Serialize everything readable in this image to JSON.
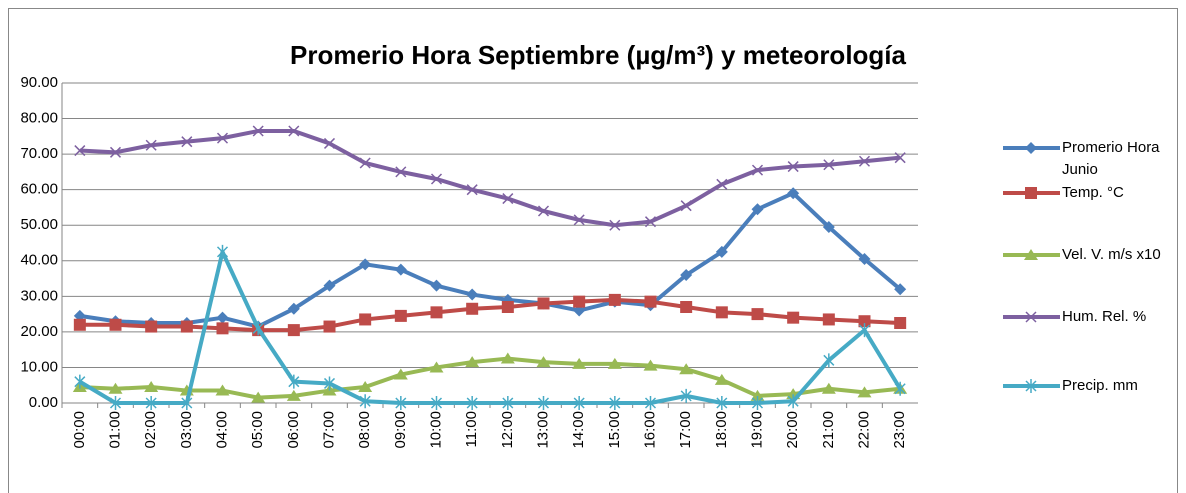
{
  "chart_data": {
    "type": "line",
    "title": "Promerio Hora Septiembre (µg/m³) y meteorología",
    "categories": [
      "00:00",
      "01:00",
      "02:00",
      "03:00",
      "04:00",
      "05:00",
      "06:00",
      "07:00",
      "08:00",
      "09:00",
      "10:00",
      "11:00",
      "12:00",
      "13:00",
      "14:00",
      "15:00",
      "16:00",
      "17:00",
      "18:00",
      "19:00",
      "20:00",
      "21:00",
      "22:00",
      "23:00"
    ],
    "series": [
      {
        "name": "Promerio Hora Junio",
        "color": "#4a7ebb",
        "marker": "diamond",
        "values": [
          24.5,
          23,
          22.5,
          22.5,
          24,
          21.5,
          26.5,
          33,
          39,
          37.5,
          33,
          30.5,
          29,
          28,
          26,
          28.5,
          27.5,
          36,
          42.5,
          54.5,
          59,
          49.5,
          40.5,
          32
        ]
      },
      {
        "name": "Temp. °C",
        "color": "#be4b48",
        "marker": "square",
        "values": [
          22,
          22,
          21.5,
          21.5,
          21,
          20.5,
          20.5,
          21.5,
          23.5,
          24.5,
          25.5,
          26.5,
          27,
          28,
          28.5,
          29,
          28.5,
          27,
          25.5,
          25,
          24,
          23.5,
          23,
          22.5
        ]
      },
      {
        "name": "Vel. V. m/s x10",
        "color": "#98b954",
        "marker": "triangle",
        "values": [
          4.5,
          4,
          4.5,
          3.5,
          3.5,
          1.5,
          2,
          3.5,
          4.5,
          8,
          10,
          11.5,
          12.5,
          11.5,
          11,
          11,
          10.5,
          9.5,
          6.5,
          2,
          2.5,
          4,
          3,
          4
        ]
      },
      {
        "name": "Hum. Rel. %",
        "color": "#7d60a0",
        "marker": "x",
        "values": [
          71,
          70.5,
          72.5,
          73.5,
          74.5,
          76.5,
          76.5,
          73,
          67.5,
          65,
          63,
          60,
          57.5,
          54,
          51.5,
          50,
          51,
          55.5,
          61.5,
          65.5,
          66.5,
          67,
          68,
          69
        ]
      },
      {
        "name": "Precip. mm",
        "color": "#46aac5",
        "marker": "star",
        "values": [
          6,
          0,
          0,
          0,
          42.5,
          21,
          6,
          5.5,
          0.5,
          0,
          0,
          0,
          0,
          0,
          0,
          0,
          0,
          2,
          0,
          0,
          0.5,
          12,
          20.5,
          4
        ]
      }
    ],
    "ylim": [
      0,
      90
    ],
    "yticks": [
      {
        "value": 0,
        "label": "0.00"
      },
      {
        "value": 10,
        "label": "10.00"
      },
      {
        "value": 20,
        "label": "20.00"
      },
      {
        "value": 30,
        "label": "30.00"
      },
      {
        "value": 40,
        "label": "40.00"
      },
      {
        "value": 50,
        "label": "50.00"
      },
      {
        "value": 60,
        "label": "60.00"
      },
      {
        "value": 70,
        "label": "70.00"
      },
      {
        "value": 80,
        "label": "80.00"
      },
      {
        "value": 90,
        "label": "90.00"
      }
    ],
    "grid": true,
    "legend": "right"
  }
}
